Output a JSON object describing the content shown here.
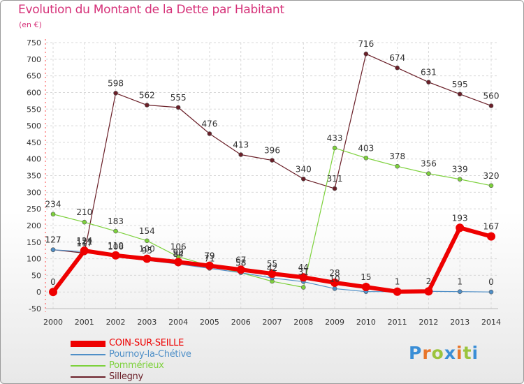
{
  "title": "Evolution du Montant de la Dette par Habitant",
  "unit": "(en €)",
  "logo": {
    "text": "Proxiti",
    "colors": [
      "#3a8ed6",
      "#e8752a",
      "#9bc43d",
      "#3a8ed6",
      "#e8752a",
      "#9bc43d",
      "#3a8ed6"
    ]
  },
  "chart_data": {
    "type": "line",
    "title": "Evolution du Montant de la Dette par Habitant",
    "ylabel": "(en €)",
    "ylim": [
      -50,
      750
    ],
    "yticks": [
      -50,
      0,
      50,
      100,
      150,
      200,
      250,
      300,
      350,
      400,
      450,
      500,
      550,
      600,
      650,
      700,
      750
    ],
    "grid": true,
    "legend_position": "bottom-left",
    "x": [
      2000,
      2001,
      2002,
      2003,
      2004,
      2005,
      2006,
      2007,
      2008,
      2009,
      2010,
      2011,
      2012,
      2013,
      2014
    ],
    "series": [
      {
        "name": "Sillegny",
        "color": "#6a1f28",
        "width": 1.2,
        "marker": 3,
        "values": [
          127,
          117,
          598,
          562,
          555,
          476,
          413,
          396,
          340,
          311,
          716,
          674,
          631,
          595,
          560
        ],
        "labels": [
          "127",
          "117",
          "598",
          "562",
          "555",
          "476",
          "413",
          "396",
          "340",
          "311",
          "716",
          "674",
          "631",
          "595",
          "560"
        ]
      },
      {
        "name": "Pommérieux",
        "color": "#7dd13c",
        "width": 1.2,
        "marker": 3,
        "values": [
          234,
          210,
          183,
          154,
          106,
          79,
          58,
          32,
          14,
          433,
          403,
          378,
          356,
          339,
          320
        ],
        "labels": [
          "234",
          "210",
          "183",
          "154",
          "106",
          "79",
          "58",
          "",
          "",
          "433",
          "403",
          "378",
          "356",
          "339",
          "320"
        ]
      },
      {
        "name": "Pournoy-la-Chétive",
        "color": "#4f8fc7",
        "width": 1.2,
        "marker": 3,
        "values": [
          127,
          121,
          106,
          95,
          84,
          71,
          58,
          42,
          31,
          10,
          1,
          1,
          2,
          1,
          0
        ],
        "labels": [
          "127",
          "121",
          "106",
          "95",
          "84",
          "71",
          "58",
          "42",
          "31",
          "10",
          "",
          "",
          "",
          "1",
          "0"
        ]
      },
      {
        "name": "COIN-SUR-SEILLE",
        "color": "#ee0000",
        "width": 6,
        "marker": 6,
        "values": [
          0,
          124,
          110,
          100,
          90,
          79,
          67,
          55,
          44,
          28,
          15,
          1,
          2,
          193,
          167
        ],
        "labels": [
          "0",
          "124",
          "110",
          "100",
          "90",
          "79",
          "67",
          "55",
          "44",
          "28",
          "15",
          "1",
          "2",
          "193",
          "167"
        ]
      }
    ],
    "legend": [
      {
        "name": "COIN-SUR-SEILLE",
        "color": "#ee0000",
        "thick": true
      },
      {
        "name": "Pournoy-la-Chétive",
        "color": "#4f8fc7",
        "thick": false
      },
      {
        "name": "Pommérieux",
        "color": "#7dd13c",
        "thick": false
      },
      {
        "name": "Sillegny",
        "color": "#6a1f28",
        "thick": false
      }
    ]
  }
}
